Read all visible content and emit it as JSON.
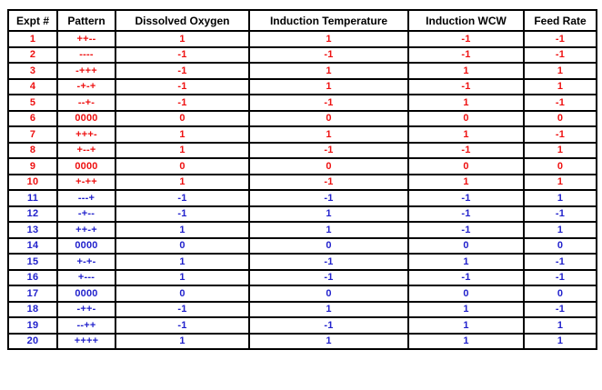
{
  "colors": {
    "red": "#ee1111",
    "blue": "#2222cc",
    "border": "#000000",
    "header_text": "#000000",
    "background": "#ffffff"
  },
  "table": {
    "columns": [
      "Expt #",
      "Pattern",
      "Dissolved Oxygen",
      "Induction Temperature",
      "Induction WCW",
      "Feed Rate"
    ],
    "rows": [
      {
        "color": "red",
        "cells": [
          "1",
          "++--",
          "1",
          "1",
          "-1",
          "-1"
        ]
      },
      {
        "color": "red",
        "cells": [
          "2",
          "----",
          "-1",
          "-1",
          "-1",
          "-1"
        ]
      },
      {
        "color": "red",
        "cells": [
          "3",
          "-+++",
          "-1",
          "1",
          "1",
          "1"
        ]
      },
      {
        "color": "red",
        "cells": [
          "4",
          "-+-+",
          "-1",
          "1",
          "-1",
          "1"
        ]
      },
      {
        "color": "red",
        "cells": [
          "5",
          "--+-",
          "-1",
          "-1",
          "1",
          "-1"
        ]
      },
      {
        "color": "red",
        "cells": [
          "6",
          "0000",
          "0",
          "0",
          "0",
          "0"
        ]
      },
      {
        "color": "red",
        "cells": [
          "7",
          "+++-",
          "1",
          "1",
          "1",
          "-1"
        ]
      },
      {
        "color": "red",
        "cells": [
          "8",
          "+--+",
          "1",
          "-1",
          "-1",
          "1"
        ]
      },
      {
        "color": "red",
        "cells": [
          "9",
          "0000",
          "0",
          "0",
          "0",
          "0"
        ]
      },
      {
        "color": "red",
        "cells": [
          "10",
          "+-++",
          "1",
          "-1",
          "1",
          "1"
        ]
      },
      {
        "color": "blue",
        "cells": [
          "11",
          "---+",
          "-1",
          "-1",
          "-1",
          "1"
        ]
      },
      {
        "color": "blue",
        "cells": [
          "12",
          "-+--",
          "-1",
          "1",
          "-1",
          "-1"
        ]
      },
      {
        "color": "blue",
        "cells": [
          "13",
          "++-+",
          "1",
          "1",
          "-1",
          "1"
        ]
      },
      {
        "color": "blue",
        "cells": [
          "14",
          "0000",
          "0",
          "0",
          "0",
          "0"
        ]
      },
      {
        "color": "blue",
        "cells": [
          "15",
          "+-+-",
          "1",
          "-1",
          "1",
          "-1"
        ]
      },
      {
        "color": "blue",
        "cells": [
          "16",
          "+---",
          "1",
          "-1",
          "-1",
          "-1"
        ]
      },
      {
        "color": "blue",
        "cells": [
          "17",
          "0000",
          "0",
          "0",
          "0",
          "0"
        ]
      },
      {
        "color": "blue",
        "cells": [
          "18",
          "-++-",
          "-1",
          "1",
          "1",
          "-1"
        ]
      },
      {
        "color": "blue",
        "cells": [
          "19",
          "--++",
          "-1",
          "-1",
          "1",
          "1"
        ]
      },
      {
        "color": "blue",
        "cells": [
          "20",
          "++++",
          "1",
          "1",
          "1",
          "1"
        ]
      }
    ]
  },
  "chart_data": {
    "type": "table",
    "title": "",
    "columns": [
      "Expt #",
      "Pattern",
      "Dissolved Oxygen",
      "Induction Temperature",
      "Induction WCW",
      "Feed Rate"
    ],
    "rows": [
      [
        "1",
        "++--",
        1,
        1,
        -1,
        -1
      ],
      [
        "2",
        "----",
        -1,
        -1,
        -1,
        -1
      ],
      [
        "3",
        "-+++",
        -1,
        1,
        1,
        1
      ],
      [
        "4",
        "-+-+",
        -1,
        1,
        -1,
        1
      ],
      [
        "5",
        "--+-",
        -1,
        -1,
        1,
        -1
      ],
      [
        "6",
        "0000",
        0,
        0,
        0,
        0
      ],
      [
        "7",
        "+++-",
        1,
        1,
        1,
        -1
      ],
      [
        "8",
        "+--+",
        1,
        -1,
        -1,
        1
      ],
      [
        "9",
        "0000",
        0,
        0,
        0,
        0
      ],
      [
        "10",
        "+-++",
        1,
        -1,
        1,
        1
      ],
      [
        "11",
        "---+",
        -1,
        -1,
        -1,
        1
      ],
      [
        "12",
        "-+--",
        -1,
        1,
        -1,
        -1
      ],
      [
        "13",
        "++-+",
        1,
        1,
        -1,
        1
      ],
      [
        "14",
        "0000",
        0,
        0,
        0,
        0
      ],
      [
        "15",
        "+-+-",
        1,
        -1,
        1,
        -1
      ],
      [
        "16",
        "+---",
        1,
        -1,
        -1,
        -1
      ],
      [
        "17",
        "0000",
        0,
        0,
        0,
        0
      ],
      [
        "18",
        "-++-",
        -1,
        1,
        1,
        -1
      ],
      [
        "19",
        "--++",
        -1,
        -1,
        1,
        1
      ],
      [
        "20",
        "++++",
        1,
        1,
        1,
        1
      ]
    ],
    "row_text_colors": {
      "rows_1_to_10": "red",
      "rows_11_to_20": "blue"
    },
    "legend_position": "none",
    "grid": "full-borders"
  }
}
